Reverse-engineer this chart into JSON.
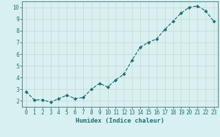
{
  "x": [
    0,
    1,
    2,
    3,
    4,
    5,
    6,
    7,
    8,
    9,
    10,
    11,
    12,
    13,
    14,
    15,
    16,
    17,
    18,
    19,
    20,
    21,
    22,
    23
  ],
  "y": [
    2.8,
    2.1,
    2.1,
    1.9,
    2.2,
    2.5,
    2.2,
    2.3,
    3.0,
    3.5,
    3.2,
    3.8,
    4.3,
    5.5,
    6.6,
    7.0,
    7.3,
    8.1,
    8.8,
    9.5,
    10.0,
    10.1,
    9.7,
    8.8
  ],
  "line_color": "#1a7070",
  "marker": "D",
  "marker_size": 2.2,
  "linewidth": 0.9,
  "linestyle": "--",
  "xlabel": "Humidex (Indice chaleur)",
  "xlim": [
    -0.5,
    23.5
  ],
  "ylim": [
    1.5,
    10.5
  ],
  "yticks": [
    2,
    3,
    4,
    5,
    6,
    7,
    8,
    9,
    10
  ],
  "xticks": [
    0,
    1,
    2,
    3,
    4,
    5,
    6,
    7,
    8,
    9,
    10,
    11,
    12,
    13,
    14,
    15,
    16,
    17,
    18,
    19,
    20,
    21,
    22,
    23
  ],
  "bg_color": "#d9f0f0",
  "grid_color": "#c8dada",
  "spine_color": "#5a8a8a",
  "tick_color": "#1a7070",
  "label_color": "#1a7070",
  "xlabel_fontsize": 6.5,
  "tick_fontsize": 5.5
}
